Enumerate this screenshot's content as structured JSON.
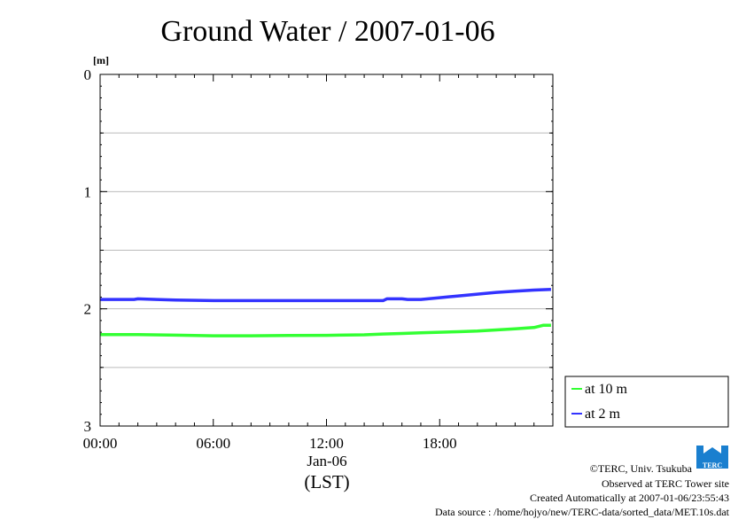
{
  "chart_data": {
    "type": "line",
    "title": "Ground Water / 2007-01-06",
    "ylabel": "[m]",
    "xlabel": "(LST)",
    "x_tick_labels": [
      "00:00",
      "06:00",
      "12:00",
      "18:00"
    ],
    "x_date_label": "Jan-06",
    "x_tick_hours": [
      0,
      6,
      12,
      18
    ],
    "xlim_hours": [
      0,
      24
    ],
    "ylim": [
      0,
      3
    ],
    "y_inverted": true,
    "y_tick_labels": [
      "0",
      "1",
      "2",
      "3"
    ],
    "y_ticks": [
      0,
      1,
      2,
      3
    ],
    "y_minor_ticks": [
      0.5,
      1.5,
      2.5
    ],
    "grid": true,
    "legend_position": "right-bottom outside",
    "series": [
      {
        "name": "at 10 m",
        "color": "#33ff33",
        "points": [
          [
            0,
            2.22
          ],
          [
            2,
            2.22
          ],
          [
            4,
            2.225
          ],
          [
            6,
            2.23
          ],
          [
            8,
            2.23
          ],
          [
            10,
            2.228
          ],
          [
            12,
            2.226
          ],
          [
            14,
            2.222
          ],
          [
            15,
            2.215
          ],
          [
            16,
            2.21
          ],
          [
            17,
            2.205
          ],
          [
            18,
            2.2
          ],
          [
            19,
            2.195
          ],
          [
            20,
            2.19
          ],
          [
            21,
            2.18
          ],
          [
            22,
            2.17
          ],
          [
            23,
            2.16
          ],
          [
            23.5,
            2.14
          ],
          [
            23.9,
            2.14
          ]
        ]
      },
      {
        "name": "at 2 m",
        "color": "#3333ff",
        "points": [
          [
            0,
            1.92
          ],
          [
            1.8,
            1.92
          ],
          [
            2,
            1.915
          ],
          [
            3,
            1.92
          ],
          [
            4,
            1.925
          ],
          [
            6,
            1.93
          ],
          [
            8,
            1.93
          ],
          [
            10,
            1.93
          ],
          [
            12,
            1.93
          ],
          [
            15,
            1.93
          ],
          [
            15.2,
            1.915
          ],
          [
            16,
            1.915
          ],
          [
            16.3,
            1.92
          ],
          [
            17,
            1.92
          ],
          [
            18,
            1.905
          ],
          [
            19,
            1.89
          ],
          [
            20,
            1.875
          ],
          [
            21,
            1.86
          ],
          [
            22,
            1.85
          ],
          [
            23,
            1.84
          ],
          [
            23.9,
            1.835
          ]
        ]
      }
    ]
  },
  "logo": {
    "text": "TERC"
  },
  "credits": {
    "copyright": "©TERC, Univ. Tsukuba",
    "observed": "Observed at TERC Tower site",
    "created": "Created Automatically at 2007-01-06/23:55:43",
    "source": "Data source : /home/hojyo/new/TERC-data/sorted_data/MET.10s.dat"
  }
}
